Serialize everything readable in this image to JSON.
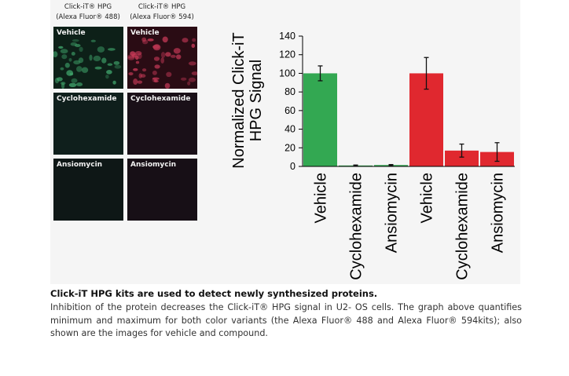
{
  "microscopy": {
    "col_headers": [
      "Click-iT® HPG\n(Alexa Fluor® 488)",
      "Click-iT® HPG\n(Alexa Fluor® 594)"
    ],
    "rows": [
      "Vehicle",
      "Cyclohexamide",
      "Ansiomycin"
    ],
    "green_color": "#3fa36a",
    "red_color": "#c83a58"
  },
  "chart_data": {
    "type": "bar",
    "ylabel": "Normalized Click-iT\nHPG Signal",
    "ylim": [
      0,
      140
    ],
    "yticks": [
      0,
      20,
      40,
      60,
      80,
      100,
      120,
      140
    ],
    "grid": false,
    "categories": [
      "Vehicle",
      "Cyclohexamide",
      "Ansiomycin",
      "Vehicle",
      "Cyclohexamide",
      "Ansiomycin"
    ],
    "values": [
      100,
      1,
      1.5,
      100,
      17,
      15.5
    ],
    "errors": [
      8,
      0.5,
      0.5,
      17,
      7,
      10
    ],
    "colors": [
      "#33a852",
      "#33a852",
      "#33a852",
      "#e0282f",
      "#e0282f",
      "#e0282f"
    ]
  },
  "caption": {
    "title": "Click-iT HPG kits are used to detect newly synthesized proteins.",
    "body": "Inhibition of the protein decreases the Click-iT® HPG signal in U2- OS cells. The graph above quantifies minimum and maximum for both color variants (the Alexa Fluor® 488 and Alexa Fluor® 594kits); also shown are the images for vehicle and compound."
  }
}
